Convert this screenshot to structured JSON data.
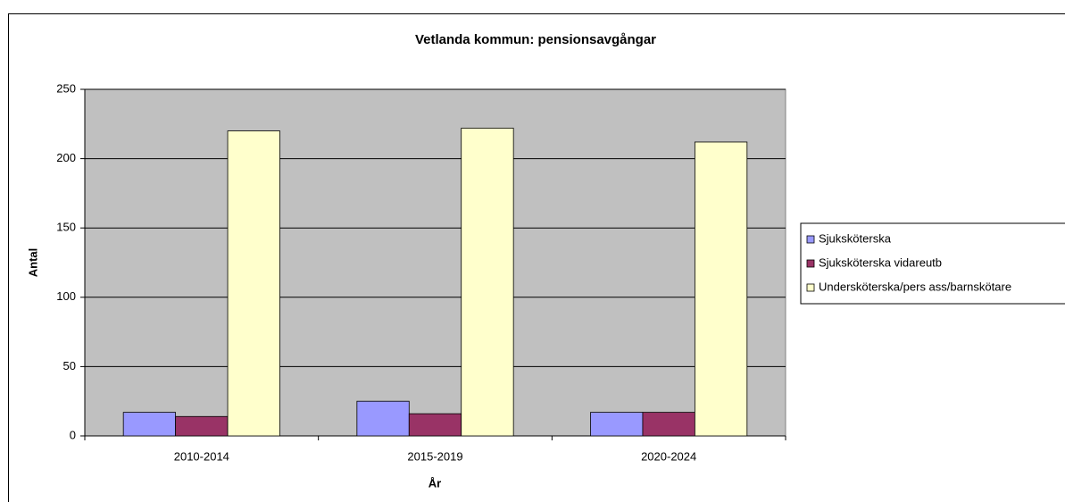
{
  "chart_data": {
    "type": "bar",
    "title": "Vetlanda kommun: pensionsavgångar",
    "x_label": "År",
    "y_label": "Antal",
    "categories": [
      "2010-2014",
      "2015-2019",
      "2020-2024"
    ],
    "series": [
      {
        "name": "Sjuksköterska",
        "color": "#9999ff",
        "values": [
          17,
          25,
          17
        ]
      },
      {
        "name": "Sjuksköterska vidareutb",
        "color": "#993366",
        "values": [
          14,
          16,
          17
        ]
      },
      {
        "name": "Undersköterska/pers ass/barnskötare",
        "color": "#ffffcc",
        "values": [
          220,
          222,
          212
        ]
      }
    ],
    "ylim": [
      0,
      250
    ],
    "yticks": [
      0,
      50,
      100,
      150,
      200,
      250
    ],
    "grid": true,
    "legend": "right"
  }
}
